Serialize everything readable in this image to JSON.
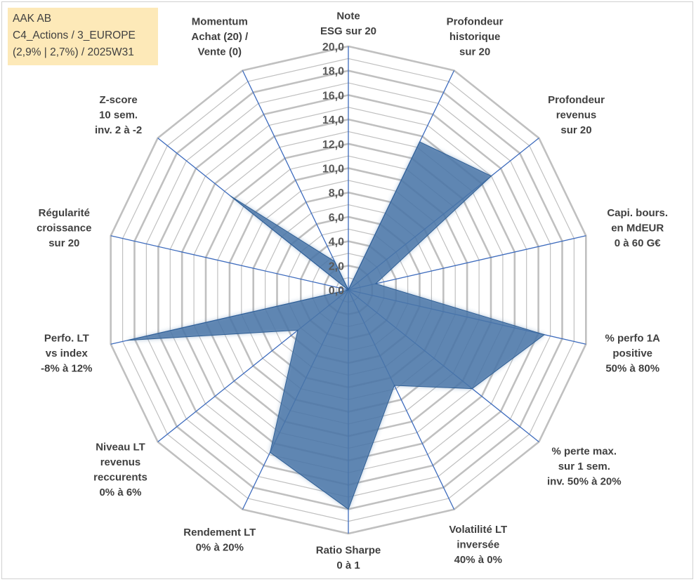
{
  "header": {
    "line1": "AAK AB",
    "line2": "C4_Actions / 3_EUROPE",
    "line3": "(2,9% | 2,7%) / 2025W31"
  },
  "chart_data": {
    "type": "radar",
    "rmin": 0,
    "rmax": 20,
    "tick_step": 1,
    "tick_labels": [
      "0,0",
      "2,0",
      "4,0",
      "6,0",
      "8,0",
      "10,0",
      "12,0",
      "14,0",
      "16,0",
      "18,0",
      "20,0"
    ],
    "axes": [
      {
        "lines": [
          "Note",
          "ESG sur 20"
        ]
      },
      {
        "lines": [
          "Profondeur",
          "historique",
          "sur 20"
        ]
      },
      {
        "lines": [
          "Profondeur",
          "revenus",
          "sur 20"
        ]
      },
      {
        "lines": [
          "Capi. bours.",
          "en MdEUR",
          "0 à 60 G€"
        ]
      },
      {
        "lines": [
          "% perfo 1A",
          "positive",
          "50% à 80%"
        ]
      },
      {
        "lines": [
          "% perte max.",
          "sur 1 sem.",
          "inv. 50% à 20%"
        ]
      },
      {
        "lines": [
          "Volatilité LT",
          "inversée",
          "40% à 0%"
        ]
      },
      {
        "lines": [
          "Ratio Sharpe",
          "0 à 1"
        ]
      },
      {
        "lines": [
          "Rendement LT",
          "0% à 20%"
        ]
      },
      {
        "lines": [
          "Niveau LT",
          "revenus",
          "reccurents",
          "0% à 6%"
        ]
      },
      {
        "lines": [
          "Perfo. LT",
          "vs index",
          "-8% à 12%"
        ]
      },
      {
        "lines": [
          "Régularité",
          "croissance",
          "sur 20"
        ]
      },
      {
        "lines": [
          "Z-score",
          "10 sem.",
          "inv. 2 à -2"
        ]
      },
      {
        "lines": [
          "Momentum",
          "Achat (20) /",
          "Vente (0)"
        ]
      }
    ],
    "values": [
      0.0,
      13.5,
      15.0,
      2.3,
      16.5,
      13.0,
      8.7,
      18.0,
      14.8,
      5.3,
      18.6,
      0.0,
      12.4,
      2.6
    ],
    "colors": {
      "fill": "#4a76a8",
      "edge": "#2f5f95",
      "grid": "#c0c0c0",
      "spoke": "#3d6bbd",
      "label": "#404040",
      "tick": "#595959",
      "box": "#fde9b8"
    }
  }
}
